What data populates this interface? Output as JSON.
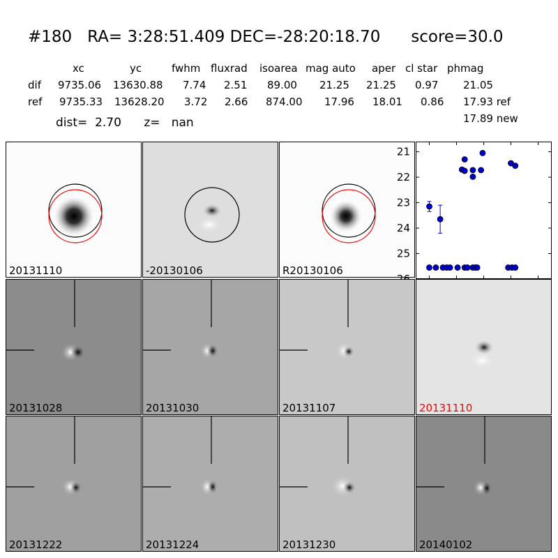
{
  "title": "#180   RA= 3:28:51.409 DEC=-28:20:18.70      score=30.0",
  "table": {
    "headers": [
      "xc",
      "yc",
      "fwhm",
      "fluxrad",
      "isoarea",
      "mag auto",
      "aper",
      "cl star",
      "phmag"
    ],
    "rows": [
      {
        "label": "dif",
        "values": [
          "9735.06",
          "13630.88",
          "7.74",
          "2.51",
          "89.00",
          "21.25",
          "21.25",
          "0.97",
          "21.05"
        ]
      },
      {
        "label": "ref",
        "values": [
          "9735.33",
          "13628.20",
          "3.72",
          "2.66",
          "874.00",
          "17.96",
          "18.01",
          "0.86",
          "17.93 ref"
        ]
      }
    ],
    "extra": "17.89 new"
  },
  "dist_line": "dist=  2.70      z=   nan",
  "panels": [
    {
      "date": "20131110",
      "kind": "ref",
      "highlight": false
    },
    {
      "date": "-20130106",
      "kind": "diff",
      "highlight": false
    },
    {
      "date": "R20130106",
      "kind": "ref",
      "highlight": false
    },
    {
      "date": "20131028",
      "kind": "dipole-dark",
      "highlight": false
    },
    {
      "date": "20131030",
      "kind": "dipole",
      "highlight": false
    },
    {
      "date": "20131107",
      "kind": "dipole-light",
      "highlight": false
    },
    {
      "date": "20131110",
      "kind": "diff-stamp",
      "highlight": true
    },
    {
      "date": "20131222",
      "kind": "dipole",
      "highlight": false
    },
    {
      "date": "20131224",
      "kind": "dipole",
      "highlight": false
    },
    {
      "date": "20131230",
      "kind": "dipole-light",
      "highlight": false
    },
    {
      "date": "20140102",
      "kind": "dipole-dark2",
      "highlight": false
    }
  ],
  "colors": {
    "highlight": "#ff0000",
    "points": "#0000cc",
    "ring_ref": "#ff0000"
  },
  "chart_data": {
    "type": "scatter",
    "xlim": [
      -125,
      125
    ],
    "ylim": [
      26,
      20.6
    ],
    "xticks": [
      "-100",
      "-50",
      "0",
      "50",
      "100"
    ],
    "yticks": [
      "21",
      "22",
      "23",
      "24",
      "25",
      "26"
    ],
    "points": [
      {
        "x": -100,
        "y": 23.15,
        "err": 0.2
      },
      {
        "x": -80,
        "y": 23.65,
        "err": 0.55
      },
      {
        "x": -35,
        "y": 21.3,
        "err": 0
      },
      {
        "x": -40,
        "y": 21.7,
        "err": 0
      },
      {
        "x": -35,
        "y": 21.75,
        "err": 0
      },
      {
        "x": -20,
        "y": 21.72,
        "err": 0.05
      },
      {
        "x": -20,
        "y": 21.98,
        "err": 0.08
      },
      {
        "x": -5,
        "y": 21.72,
        "err": 0
      },
      {
        "x": -2,
        "y": 21.05,
        "err": 0
      },
      {
        "x": 50,
        "y": 21.45,
        "err": 0
      },
      {
        "x": 58,
        "y": 21.55,
        "err": 0
      },
      {
        "x": -100,
        "y": 25.55,
        "err": 0
      },
      {
        "x": -88,
        "y": 25.55,
        "err": 0
      },
      {
        "x": -75,
        "y": 25.55,
        "err": 0
      },
      {
        "x": -68,
        "y": 25.55,
        "err": 0
      },
      {
        "x": -62,
        "y": 25.55,
        "err": 0
      },
      {
        "x": -48,
        "y": 25.55,
        "err": 0
      },
      {
        "x": -35,
        "y": 25.55,
        "err": 0
      },
      {
        "x": -30,
        "y": 25.55,
        "err": 0
      },
      {
        "x": -20,
        "y": 25.55,
        "err": 0
      },
      {
        "x": -15,
        "y": 25.55,
        "err": 0
      },
      {
        "x": -12,
        "y": 25.55,
        "err": 0
      },
      {
        "x": 45,
        "y": 25.55,
        "err": 0
      },
      {
        "x": 52,
        "y": 25.55,
        "err": 0
      },
      {
        "x": 58,
        "y": 25.55,
        "err": 0
      }
    ]
  }
}
